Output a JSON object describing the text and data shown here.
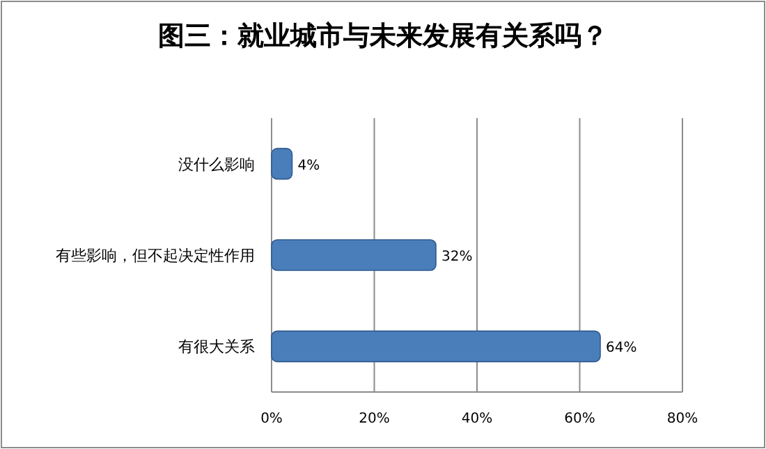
{
  "chart_data": {
    "type": "bar",
    "orientation": "horizontal",
    "title": "图三：就业城市与未来发展有关系吗？",
    "categories": [
      "没什么影响",
      "有些影响，但不起决定性作用",
      "有很大关系"
    ],
    "values": [
      4,
      32,
      64
    ],
    "value_labels": [
      "4%",
      "32%",
      "64%"
    ],
    "color": "#4a7ebb",
    "xlim": [
      0,
      80
    ],
    "xticks": [
      {
        "value": 0,
        "label": "0%"
      },
      {
        "value": 20,
        "label": "20%"
      },
      {
        "value": 40,
        "label": "40%"
      },
      {
        "value": 60,
        "label": "60%"
      },
      {
        "value": 80,
        "label": "80%"
      }
    ],
    "grid": "x"
  }
}
